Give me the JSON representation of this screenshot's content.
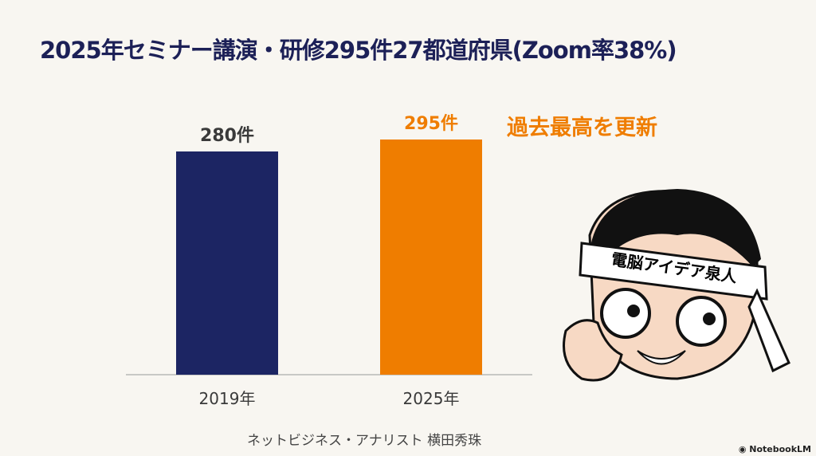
{
  "chart_data": {
    "type": "bar",
    "title": "2025年セミナー講演・研修295件27都道府県(Zoom率38%)",
    "categories": [
      "2019年",
      "2025年"
    ],
    "values": [
      280,
      295
    ],
    "data_labels": [
      "280件",
      "295件"
    ],
    "colors": [
      "#1c2563",
      "#ef7d00"
    ],
    "label_colors": [
      "#3a3a3a",
      "#ef7d00"
    ],
    "annotation": "過去最高を更新",
    "xlabel": "",
    "ylabel": "",
    "ylim": [
      0,
      300
    ],
    "grid": false,
    "legend": "none"
  },
  "footer": "ネットビジネス・アナリスト 横田秀珠",
  "character": {
    "headband": "電脳アイデア泉人"
  },
  "logo": "NotebookLM"
}
